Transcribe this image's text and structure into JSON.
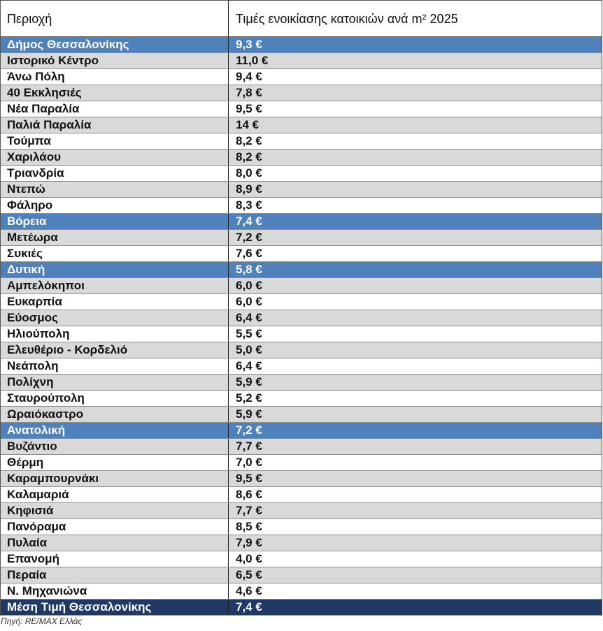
{
  "table": {
    "header": [
      "Περιοχή",
      "Τιμές ενοικίασης κατοικιών ανά m² 2025"
    ],
    "row_colors": {
      "region": "#4f81bd",
      "shaded": "#d9d9d9",
      "plain": "#ffffff",
      "total": "#1f3864"
    },
    "rows": [
      {
        "kind": "region",
        "cells": [
          "Δήμος Θεσσαλονίκης",
          "9,3 €"
        ]
      },
      {
        "kind": "shaded",
        "cells": [
          "Ιστορικό Κέντρο",
          "11,0 €"
        ]
      },
      {
        "kind": "plain",
        "cells": [
          "Άνω Πόλη",
          "9,4 €"
        ]
      },
      {
        "kind": "shaded",
        "cells": [
          "40 Εκκλησιές",
          "7,8 €"
        ]
      },
      {
        "kind": "plain",
        "cells": [
          "Νέα Παραλία",
          "9,5 €"
        ]
      },
      {
        "kind": "shaded",
        "cells": [
          "Παλιά Παραλία",
          "14 €"
        ]
      },
      {
        "kind": "plain",
        "cells": [
          "Τούμπα",
          "8,2 €"
        ]
      },
      {
        "kind": "shaded",
        "cells": [
          "Χαριλάου",
          "8,2 €"
        ]
      },
      {
        "kind": "plain",
        "cells": [
          "Τριανδρία",
          "8,0 €"
        ]
      },
      {
        "kind": "shaded",
        "cells": [
          "Ντεπώ",
          "8,9 €"
        ]
      },
      {
        "kind": "plain",
        "cells": [
          "Φάληρο",
          "8,3 €"
        ]
      },
      {
        "kind": "region",
        "cells": [
          "Βόρεια",
          "7,4 €"
        ]
      },
      {
        "kind": "shaded",
        "cells": [
          "Μετέωρα",
          "7,2 €"
        ]
      },
      {
        "kind": "plain",
        "cells": [
          "Συκιές",
          "7,6 €"
        ]
      },
      {
        "kind": "region",
        "cells": [
          "Δυτική",
          "5,8 €"
        ]
      },
      {
        "kind": "shaded",
        "cells": [
          "Αμπελόκηποι",
          "6,0 €"
        ]
      },
      {
        "kind": "plain",
        "cells": [
          "Ευκαρπία",
          "6,0 €"
        ]
      },
      {
        "kind": "shaded",
        "cells": [
          "Εύοσμος",
          "6,4 €"
        ]
      },
      {
        "kind": "plain",
        "cells": [
          "Ηλιούπολη",
          "5,5 €"
        ]
      },
      {
        "kind": "shaded",
        "cells": [
          "Ελευθέριο - Κορδελιό",
          "5,0 €"
        ]
      },
      {
        "kind": "plain",
        "cells": [
          "Νεάπολη",
          "6,4 €"
        ]
      },
      {
        "kind": "shaded",
        "cells": [
          "Πολίχνη",
          "5,9 €"
        ]
      },
      {
        "kind": "plain",
        "cells": [
          "Σταυρούπολη",
          "5,2 €"
        ]
      },
      {
        "kind": "shaded",
        "cells": [
          "Ωραιόκαστρο",
          "5,9 €"
        ]
      },
      {
        "kind": "region",
        "cells": [
          "Ανατολική",
          "7,2 €"
        ]
      },
      {
        "kind": "shaded",
        "cells": [
          "Βυζάντιο",
          "7,7 €"
        ]
      },
      {
        "kind": "plain",
        "cells": [
          "Θέρμη",
          "7,0 €"
        ]
      },
      {
        "kind": "shaded",
        "cells": [
          "Καραμπουρνάκι",
          "9,5 €"
        ]
      },
      {
        "kind": "plain",
        "cells": [
          "Καλαμαριά",
          "8,6 €"
        ]
      },
      {
        "kind": "shaded",
        "cells": [
          "Κηφισιά",
          "7,7 €"
        ]
      },
      {
        "kind": "plain",
        "cells": [
          "Πανόραμα",
          "8,5 €"
        ]
      },
      {
        "kind": "shaded",
        "cells": [
          "Πυλαία",
          "7,9 €"
        ]
      },
      {
        "kind": "plain",
        "cells": [
          "Επανομή",
          "4,0 €"
        ]
      },
      {
        "kind": "shaded",
        "cells": [
          "Περαία",
          "6,5 €"
        ]
      },
      {
        "kind": "plain",
        "cells": [
          "Ν. Μηχανιώνα",
          "4,6 €"
        ]
      },
      {
        "kind": "total",
        "cells": [
          "Μέση Τιμή Θεσσαλονίκης",
          "7,4 €"
        ]
      }
    ],
    "source": "Πηγή: RE/MAX Ελλάς"
  }
}
